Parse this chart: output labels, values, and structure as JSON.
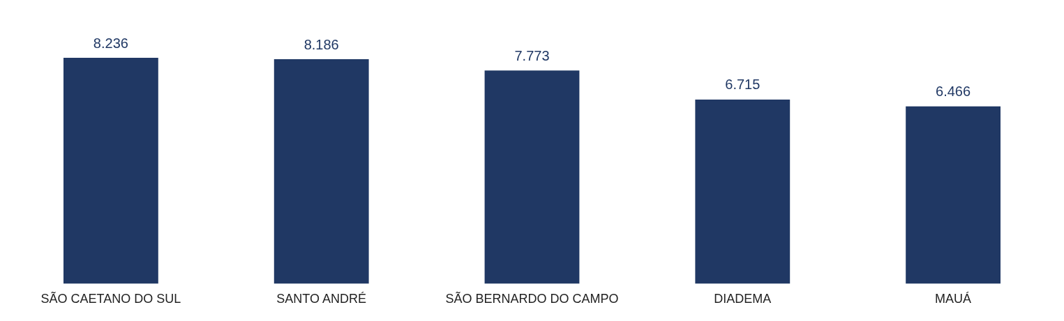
{
  "chart_data": {
    "type": "bar",
    "categories": [
      "SÃO CAETANO DO SUL",
      "SANTO ANDRÉ",
      "SÃO BERNARDO DO CAMPO",
      "DIADEMA",
      "MAUÁ"
    ],
    "values": [
      8.236,
      8.186,
      7.773,
      6.715,
      6.466
    ],
    "color": "#203864",
    "data_labels": true,
    "grid": false,
    "legend": false
  }
}
